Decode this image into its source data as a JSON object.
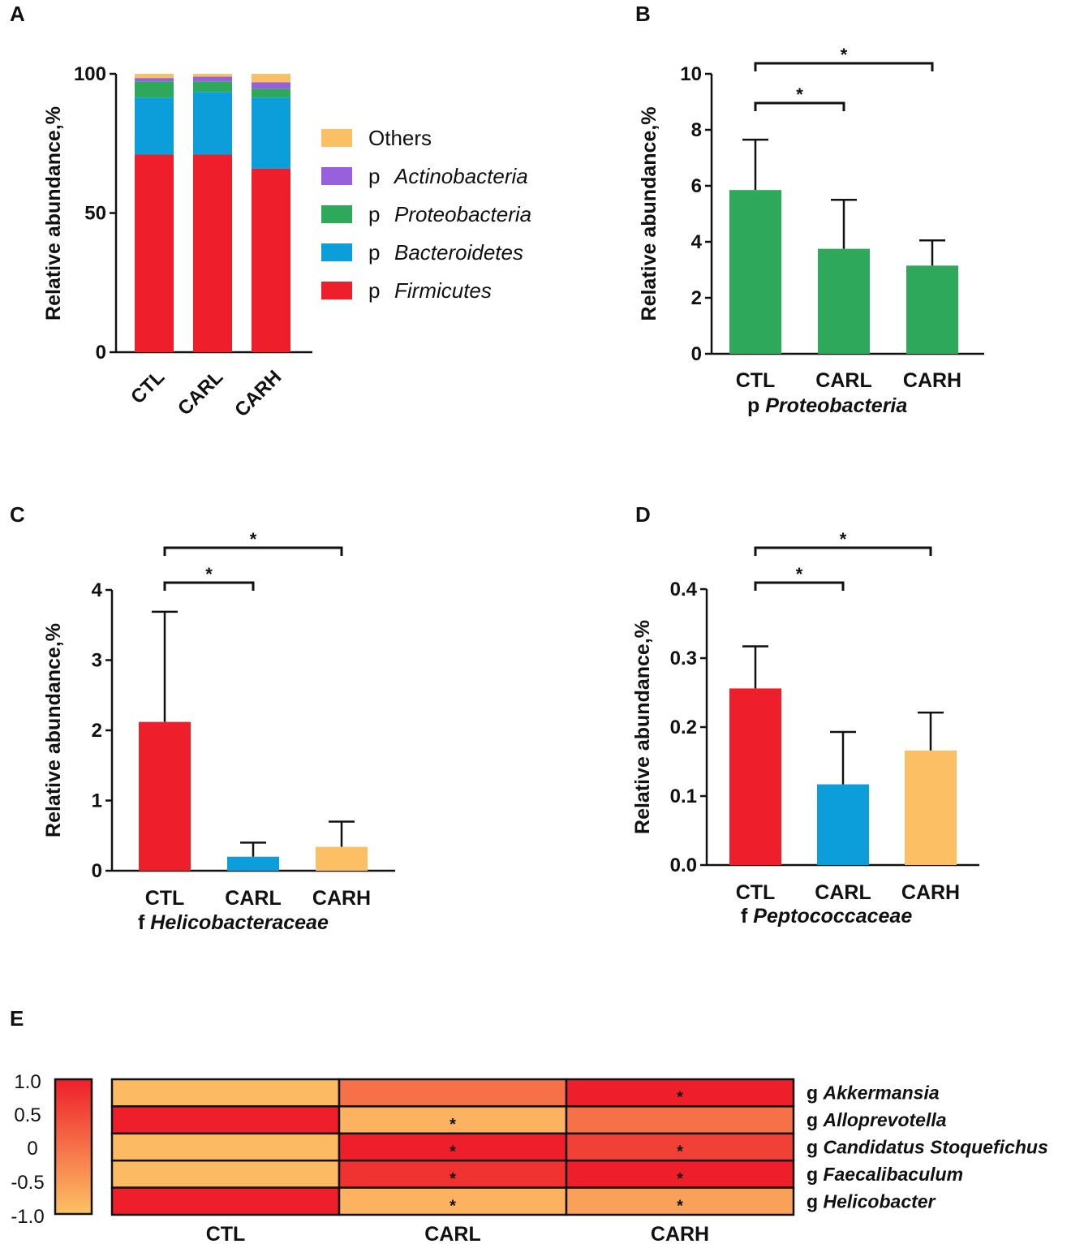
{
  "colors": {
    "firmicutes": "#ee1f2a",
    "bacteroidetes": "#0c9edb",
    "proteobacteria": "#2ea85a",
    "actinobacteria": "#9960de",
    "others": "#fdbf63",
    "heat_low": "#fdc265",
    "heat_high": "#ee1f2a"
  },
  "chart_data": [
    {
      "panel": "A",
      "type": "bar",
      "stacked": true,
      "categories": [
        "CTL",
        "CARL",
        "CARH"
      ],
      "ylabel": "Relative abundance,%",
      "ylim": [
        0,
        100
      ],
      "yticks": [
        "0",
        "50",
        "100"
      ],
      "series": [
        {
          "name": "Firmicutes",
          "prefix": "p",
          "color_key": "firmicutes",
          "values": [
            71,
            71,
            66
          ]
        },
        {
          "name": "Bacteroidetes",
          "prefix": "p",
          "color_key": "bacteroidetes",
          "values": [
            20.5,
            22.5,
            25.5
          ]
        },
        {
          "name": "Proteobacteria",
          "prefix": "p",
          "color_key": "proteobacteria",
          "values": [
            5.8,
            3.8,
            3.2
          ]
        },
        {
          "name": "Actinobacteria",
          "prefix": "p",
          "color_key": "actinobacteria",
          "values": [
            1.2,
            1.7,
            2.3
          ]
        },
        {
          "name": "Others",
          "prefix": "",
          "color_key": "others",
          "values": [
            1.5,
            1.0,
            3.0
          ]
        }
      ],
      "legend": [
        {
          "prefix": "",
          "name": "Others",
          "color_key": "others"
        },
        {
          "prefix": "p",
          "name": "Actinobacteria",
          "color_key": "actinobacteria"
        },
        {
          "prefix": "p",
          "name": "Proteobacteria",
          "color_key": "proteobacteria"
        },
        {
          "prefix": "p",
          "name": "Bacteroidetes",
          "color_key": "bacteroidetes"
        },
        {
          "prefix": "p",
          "name": "Firmicutes",
          "color_key": "firmicutes"
        }
      ]
    },
    {
      "panel": "B",
      "type": "bar",
      "categories": [
        "CTL",
        "CARL",
        "CARH"
      ],
      "values": [
        5.85,
        3.75,
        3.15
      ],
      "errors": [
        1.8,
        1.75,
        0.9
      ],
      "bar_colors": [
        "proteobacteria",
        "proteobacteria",
        "proteobacteria"
      ],
      "ylim": [
        0,
        10
      ],
      "yticks": [
        "0",
        "2",
        "4",
        "6",
        "8",
        "10"
      ],
      "ylabel": "Relative abundance,%",
      "taxon_prefix": "p",
      "taxon": "Proteobacteria",
      "significance": [
        {
          "from": 0,
          "to": 1,
          "label": "*"
        },
        {
          "from": 0,
          "to": 2,
          "label": "*"
        }
      ]
    },
    {
      "panel": "C",
      "type": "bar",
      "categories": [
        "CTL",
        "CARL",
        "CARH"
      ],
      "values": [
        2.12,
        0.2,
        0.34
      ],
      "errors": [
        1.57,
        0.2,
        0.36
      ],
      "bar_colors": [
        "firmicutes",
        "bacteroidetes",
        "others"
      ],
      "ylim": [
        0,
        4
      ],
      "yticks": [
        "0",
        "1",
        "2",
        "3",
        "4"
      ],
      "ylabel": "Relative abundance,%",
      "taxon_prefix": "f",
      "taxon": "Helicobacteraceae",
      "significance": [
        {
          "from": 0,
          "to": 1,
          "label": "*"
        },
        {
          "from": 0,
          "to": 2,
          "label": "*"
        }
      ]
    },
    {
      "panel": "D",
      "type": "bar",
      "categories": [
        "CTL",
        "CARL",
        "CARH"
      ],
      "values": [
        0.256,
        0.117,
        0.166
      ],
      "errors": [
        0.061,
        0.076,
        0.055
      ],
      "bar_colors": [
        "firmicutes",
        "bacteroidetes",
        "others"
      ],
      "ylim": [
        0,
        0.4
      ],
      "yticks": [
        "0.0",
        "0.1",
        "0.2",
        "0.3",
        "0.4"
      ],
      "ylabel": "Relative abundance,%",
      "taxon_prefix": "f",
      "taxon": "Peptococcaceae",
      "significance": [
        {
          "from": 0,
          "to": 1,
          "label": "*"
        },
        {
          "from": 0,
          "to": 2,
          "label": "*"
        }
      ]
    },
    {
      "panel": "E",
      "type": "heatmap",
      "columns": [
        "CTL",
        "CARL",
        "CARH"
      ],
      "rows": [
        {
          "prefix": "g",
          "name": "Akkermansia",
          "values": [
            -0.9,
            0.0,
            1.0
          ],
          "stars": [
            "",
            "",
            "*"
          ]
        },
        {
          "prefix": "g",
          "name": "Alloprevotella",
          "values": [
            1.0,
            -0.8,
            0.0
          ],
          "stars": [
            "",
            "*",
            ""
          ]
        },
        {
          "prefix": "g",
          "name": "Candidatus Stoquefichus",
          "values": [
            -0.9,
            1.0,
            0.6
          ],
          "stars": [
            "",
            "*",
            "*"
          ]
        },
        {
          "prefix": "g",
          "name": "Faecalibaculum",
          "values": [
            -0.9,
            0.75,
            1.0
          ],
          "stars": [
            "",
            "*",
            "*"
          ]
        },
        {
          "prefix": "g",
          "name": "Helicobacter",
          "values": [
            1.0,
            -0.8,
            -0.6
          ],
          "stars": [
            "",
            "*",
            "*"
          ]
        }
      ],
      "colorbar_range": [
        -1.0,
        1.0
      ],
      "colorbar_ticks": [
        "1.0",
        "0.5",
        "0",
        "-0.5",
        "-1.0"
      ]
    }
  ]
}
